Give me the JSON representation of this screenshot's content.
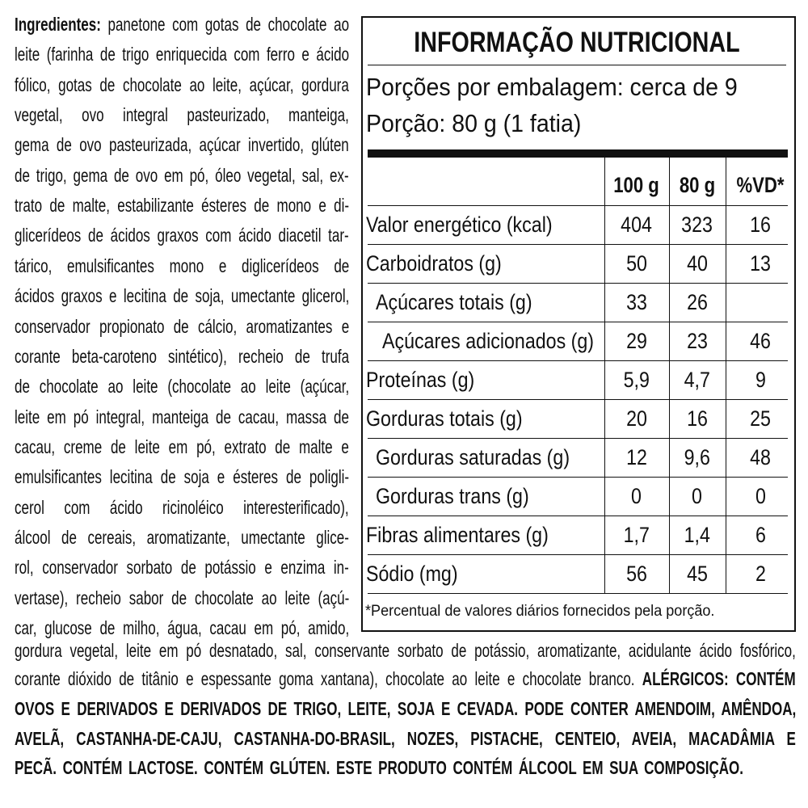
{
  "ingredients": {
    "label": "Ingredientes:",
    "lines": [
      "panetone com gotas de chocolate ao",
      "leite (farinha de trigo enriquecida com ferro e ácido",
      "fólico, gotas de chocolate ao leite, açúcar, gordura",
      "vegetal, ovo integral pasteurizado, manteiga,",
      "gema de ovo pasteurizada, açúcar invertido, glúten",
      "de trigo, gema de ovo em pó, óleo vegetal, sal, ex-",
      "trato de malte, estabilizante ésteres de mono e di-",
      "glicerídeos de ácidos graxos com ácido diacetil tar-",
      "tárico, emulsificantes mono e diglicerídeos de",
      "ácidos graxos e lecitina de soja, umectante glicerol,",
      "conservador propionato de cálcio, aromatizantes e",
      "corante beta-caroteno sintético), recheio de trufa",
      "de chocolate ao leite (chocolate ao leite (açúcar,",
      "leite em pó integral, manteiga de cacau, massa de",
      "cacau, creme de leite em pó, extrato de malte e",
      "emulsificantes lecitina de soja e ésteres de poligli-",
      "cerol com ácido ricinoléico interesterificado),",
      "álcool de cereais, aromatizante, umectante glice-",
      "rol, conservador sorbato de potássio e enzima in-",
      "vertase), recheio sabor de chocolate ao leite (açú-",
      "car, glucose de milho, água, cacau em pó, amido,",
      "gordura vegetal, leite em pó desnatado, sal, conservante sorbato de potássio, aromatizante, acidulante ácido fosfórico,",
      "corante dióxido de titânio e espessante goma xantana), chocolate ao leite e chocolate branco."
    ]
  },
  "allergens": {
    "label": "ALÉRGICOS: CONTÉM",
    "lines": [
      "OVOS E DERIVADOS E DERIVADOS DE TRIGO, LEITE, SOJA E CEVADA. PODE CONTER AMENDOIM, AMÊNDOA,",
      "AVELÃ, CASTANHA-DE-CAJU, CASTANHA-DO-BRASIL, NOZES, PISTACHE, CENTEIO, AVEIA, MACADÂMIA E",
      "PECÃ. CONTÉM LACTOSE. CONTÉM GLÚTEN. ESTE PRODUTO CONTÉM ÁLCOOL EM SUA COMPOSIÇÃO."
    ]
  },
  "nutrition": {
    "title": "INFORMAÇÃO NUTRICIONAL",
    "servings_per_package": "Porções por embalagem: cerca de 9",
    "serving_size": "Porção: 80 g (1 fatia)",
    "columns": [
      "100 g",
      "80 g",
      "%VD*"
    ],
    "rows": [
      {
        "label": "Valor energético (kcal)",
        "values": [
          404,
          323,
          16
        ]
      },
      {
        "label": "Carboidratos (g)",
        "values": [
          50,
          40,
          13
        ]
      },
      {
        "label": "Açúcares totais (g)",
        "values": [
          33,
          26,
          null
        ]
      },
      {
        "label": "Açúcares adicionados (g)",
        "values": [
          29,
          23,
          46
        ]
      },
      {
        "label": "Proteínas (g)",
        "values": [
          "5,9",
          "4,7",
          9
        ]
      },
      {
        "label": "Gorduras totais (g)",
        "values": [
          20,
          16,
          25
        ]
      },
      {
        "label": "Gorduras saturadas (g)",
        "values": [
          12,
          "9,6",
          48
        ]
      },
      {
        "label": "Gorduras trans (g)",
        "values": [
          0,
          0,
          0
        ]
      },
      {
        "label": "Fibras alimentares (g)",
        "values": [
          "1,7",
          "1,4",
          6
        ]
      },
      {
        "label": "Sódio (mg)",
        "values": [
          56,
          45,
          2
        ]
      }
    ],
    "footnote": "*Percentual de valores diários fornecidos pela porção."
  }
}
